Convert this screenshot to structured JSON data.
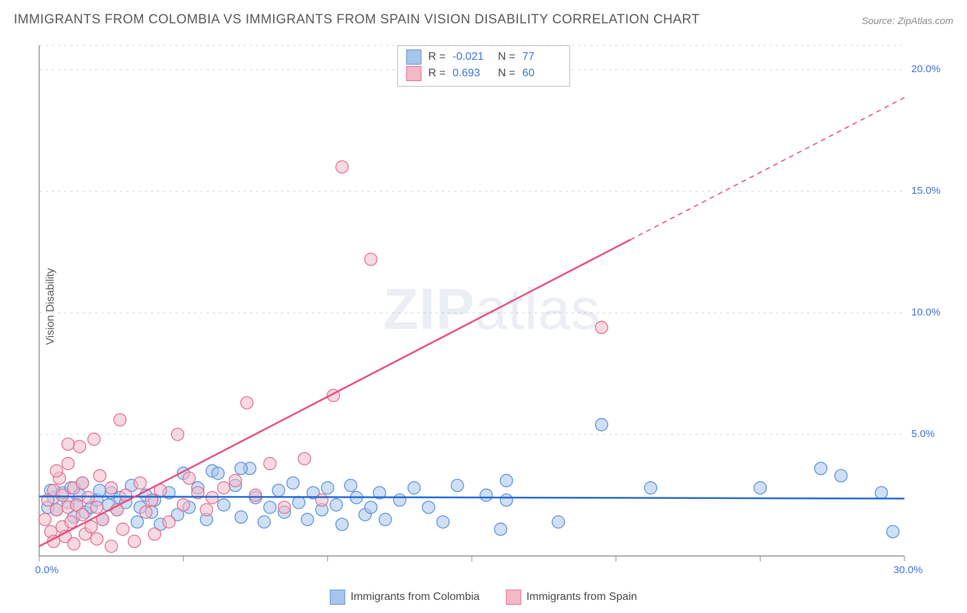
{
  "title": "IMMIGRANTS FROM COLOMBIA VS IMMIGRANTS FROM SPAIN VISION DISABILITY CORRELATION CHART",
  "source": "Source: ZipAtlas.com",
  "ylabel": "Vision Disability",
  "watermark_bold": "ZIP",
  "watermark_rest": "atlas",
  "chart": {
    "type": "scatter",
    "background_color": "#ffffff",
    "grid_color": "#d8d8d8",
    "axis_color": "#777777",
    "tick_color": "#888888",
    "tick_label_color": "#3a6fd8",
    "tick_fontsize": 15,
    "title_fontsize": 19,
    "title_color": "#555555",
    "ylabel_fontsize": 16,
    "x": {
      "min": 0.0,
      "max": 30.0,
      "ticks": [
        0,
        5,
        10,
        15,
        20,
        25,
        30
      ],
      "tick_labels": [
        "0.0%",
        "",
        "",
        "",
        "",
        "",
        "30.0%"
      ]
    },
    "y": {
      "min": 0.0,
      "max": 21.0,
      "gridlines": [
        5,
        10,
        15,
        20
      ],
      "gridline_labels": [
        "5.0%",
        "10.0%",
        "15.0%",
        "20.0%"
      ]
    },
    "marker_radius": 9,
    "marker_opacity": 0.55,
    "series": [
      {
        "id": "colombia",
        "label": "Immigrants from Colombia",
        "color_fill": "#a8c5ec",
        "color_stroke": "#5a8fd6",
        "R": "-0.021",
        "N": "77",
        "trend": {
          "slope": -0.003,
          "intercept": 2.45,
          "color": "#1e66d0",
          "width": 2.5,
          "dash_after_x": null
        },
        "points": [
          [
            0.3,
            2.0
          ],
          [
            0.5,
            2.4
          ],
          [
            0.6,
            1.9
          ],
          [
            0.8,
            2.6
          ],
          [
            1.0,
            2.2
          ],
          [
            1.1,
            2.8
          ],
          [
            1.2,
            1.6
          ],
          [
            1.3,
            2.1
          ],
          [
            1.4,
            2.5
          ],
          [
            1.5,
            3.0
          ],
          [
            1.6,
            1.8
          ],
          [
            1.8,
            2.0
          ],
          [
            2.0,
            2.3
          ],
          [
            2.1,
            2.7
          ],
          [
            2.2,
            1.5
          ],
          [
            2.4,
            2.1
          ],
          [
            2.5,
            2.6
          ],
          [
            2.7,
            1.9
          ],
          [
            2.8,
            2.4
          ],
          [
            3.0,
            2.2
          ],
          [
            3.2,
            2.9
          ],
          [
            3.4,
            1.4
          ],
          [
            3.5,
            2.0
          ],
          [
            3.7,
            2.5
          ],
          [
            3.9,
            1.8
          ],
          [
            4.0,
            2.3
          ],
          [
            4.2,
            1.3
          ],
          [
            4.5,
            2.6
          ],
          [
            4.8,
            1.7
          ],
          [
            5.0,
            3.4
          ],
          [
            5.2,
            2.0
          ],
          [
            5.5,
            2.8
          ],
          [
            5.8,
            1.5
          ],
          [
            6.0,
            3.5
          ],
          [
            6.4,
            2.1
          ],
          [
            6.8,
            2.9
          ],
          [
            7.0,
            1.6
          ],
          [
            7.3,
            3.6
          ],
          [
            7.5,
            2.4
          ],
          [
            7.8,
            1.4
          ],
          [
            8.0,
            2.0
          ],
          [
            8.3,
            2.7
          ],
          [
            8.5,
            1.8
          ],
          [
            8.8,
            3.0
          ],
          [
            9.0,
            2.2
          ],
          [
            9.3,
            1.5
          ],
          [
            9.5,
            2.6
          ],
          [
            9.8,
            1.9
          ],
          [
            10.0,
            2.8
          ],
          [
            10.3,
            2.1
          ],
          [
            10.5,
            1.3
          ],
          [
            10.8,
            2.9
          ],
          [
            11.0,
            2.4
          ],
          [
            11.3,
            1.7
          ],
          [
            11.5,
            2.0
          ],
          [
            11.8,
            2.6
          ],
          [
            12.0,
            1.5
          ],
          [
            12.5,
            2.3
          ],
          [
            13.0,
            2.8
          ],
          [
            13.5,
            2.0
          ],
          [
            14.0,
            1.4
          ],
          [
            14.5,
            2.9
          ],
          [
            15.5,
            2.5
          ],
          [
            16.0,
            1.1
          ],
          [
            16.2,
            3.1
          ],
          [
            16.2,
            2.3
          ],
          [
            18.0,
            1.4
          ],
          [
            19.5,
            5.4
          ],
          [
            21.2,
            2.8
          ],
          [
            25.0,
            2.8
          ],
          [
            27.8,
            3.3
          ],
          [
            27.1,
            3.6
          ],
          [
            29.6,
            1.0
          ],
          [
            29.2,
            2.6
          ],
          [
            6.2,
            3.4
          ],
          [
            7.0,
            3.6
          ],
          [
            0.4,
            2.7
          ]
        ]
      },
      {
        "id": "spain",
        "label": "Immigrants from Spain",
        "color_fill": "#f2b9c8",
        "color_stroke": "#e06d8d",
        "R": "0.693",
        "N": "60",
        "trend": {
          "slope": 0.615,
          "intercept": 0.4,
          "color": "#e84a7a",
          "width": 2.5,
          "dash_after_x": 20.5
        },
        "points": [
          [
            0.2,
            1.5
          ],
          [
            0.3,
            2.3
          ],
          [
            0.4,
            1.0
          ],
          [
            0.5,
            2.7
          ],
          [
            0.5,
            0.6
          ],
          [
            0.6,
            1.9
          ],
          [
            0.7,
            3.2
          ],
          [
            0.8,
            1.2
          ],
          [
            0.8,
            2.5
          ],
          [
            0.9,
            0.8
          ],
          [
            1.0,
            2.0
          ],
          [
            1.0,
            3.8
          ],
          [
            1.1,
            1.4
          ],
          [
            1.2,
            2.8
          ],
          [
            1.2,
            0.5
          ],
          [
            1.3,
            2.1
          ],
          [
            1.4,
            4.5
          ],
          [
            1.5,
            1.7
          ],
          [
            1.5,
            3.0
          ],
          [
            1.6,
            0.9
          ],
          [
            1.7,
            2.4
          ],
          [
            1.8,
            1.2
          ],
          [
            1.9,
            4.8
          ],
          [
            2.0,
            2.0
          ],
          [
            2.0,
            0.7
          ],
          [
            2.1,
            3.3
          ],
          [
            2.2,
            1.5
          ],
          [
            2.5,
            0.4
          ],
          [
            2.5,
            2.8
          ],
          [
            2.7,
            1.9
          ],
          [
            2.8,
            5.6
          ],
          [
            2.9,
            1.1
          ],
          [
            3.0,
            2.5
          ],
          [
            3.3,
            0.6
          ],
          [
            3.5,
            3.0
          ],
          [
            3.7,
            1.8
          ],
          [
            3.9,
            2.3
          ],
          [
            4.0,
            0.9
          ],
          [
            4.2,
            2.7
          ],
          [
            4.5,
            1.4
          ],
          [
            4.8,
            5.0
          ],
          [
            5.0,
            2.1
          ],
          [
            5.2,
            3.2
          ],
          [
            5.5,
            2.6
          ],
          [
            5.8,
            1.9
          ],
          [
            6.0,
            2.4
          ],
          [
            6.4,
            2.8
          ],
          [
            6.8,
            3.1
          ],
          [
            7.2,
            6.3
          ],
          [
            7.5,
            2.5
          ],
          [
            8.0,
            3.8
          ],
          [
            8.5,
            2.0
          ],
          [
            9.2,
            4.0
          ],
          [
            9.8,
            2.3
          ],
          [
            10.2,
            6.6
          ],
          [
            10.5,
            16.0
          ],
          [
            11.5,
            12.2
          ],
          [
            1.0,
            4.6
          ],
          [
            0.6,
            3.5
          ],
          [
            19.5,
            9.4
          ]
        ]
      }
    ],
    "stats_box": {
      "border_color": "#b8b8b8",
      "label_color": "#444444",
      "value_color": "#3a6fd8",
      "fontsize": 16
    },
    "bottom_legend": {
      "fontsize": 16,
      "text_color": "#444444"
    }
  }
}
